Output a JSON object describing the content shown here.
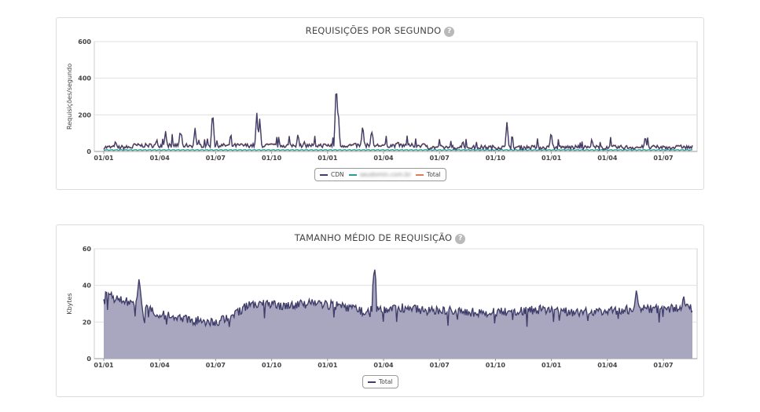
{
  "chart_data": [
    {
      "type": "line",
      "title": "REQUISIÇÕES POR SEGUNDO",
      "help_icon": "?",
      "ylabel": "Requisições/segundo",
      "xlabel": "",
      "ylim": [
        0,
        600
      ],
      "yticks": [
        "0",
        "200",
        "400",
        "600"
      ],
      "xticks": [
        "01/01",
        "01/04",
        "01/07",
        "01/10",
        "01/01",
        "01/04",
        "01/07",
        "01/10",
        "01/01",
        "01/04",
        "01/07"
      ],
      "grid": true,
      "legend_position": "bottom-center",
      "series": [
        {
          "name": "CDN",
          "color": "#3f3d6a"
        },
        {
          "name": "seudomin.com.br",
          "color": "#2a9d8f"
        },
        {
          "name": "Total",
          "color": "#e07b5a"
        }
      ],
      "baseline": 22,
      "spikes": [
        [
          0.02,
          60
        ],
        [
          0.09,
          70
        ],
        [
          0.105,
          110
        ],
        [
          0.13,
          120
        ],
        [
          0.155,
          130
        ],
        [
          0.185,
          225
        ],
        [
          0.215,
          60
        ],
        [
          0.26,
          215
        ],
        [
          0.265,
          180
        ],
        [
          0.33,
          100
        ],
        [
          0.395,
          390
        ],
        [
          0.398,
          250
        ],
        [
          0.44,
          150
        ],
        [
          0.455,
          120
        ],
        [
          0.5,
          60
        ],
        [
          0.61,
          60
        ],
        [
          0.685,
          160
        ],
        [
          0.76,
          110
        ],
        [
          0.83,
          55
        ],
        [
          0.92,
          85
        ],
        [
          0.98,
          40
        ]
      ]
    },
    {
      "type": "area",
      "title": "TAMANHO MÉDIO DE REQUISIÇÃO",
      "help_icon": "?",
      "ylabel": "Kbytes",
      "xlabel": "",
      "ylim": [
        0,
        60
      ],
      "yticks": [
        "0",
        "20",
        "40",
        "60"
      ],
      "xticks": [
        "01/01",
        "01/04",
        "01/07",
        "01/10",
        "01/01",
        "01/04",
        "01/07",
        "01/10",
        "01/01",
        "01/04",
        "01/07"
      ],
      "grid": true,
      "legend_position": "bottom-center",
      "series": [
        {
          "name": "Total",
          "color": "#3f3d6a",
          "fill": "#a9a7bf"
        }
      ],
      "trend": [
        [
          0.0,
          35
        ],
        [
          0.04,
          31
        ],
        [
          0.06,
          28
        ],
        [
          0.1,
          24
        ],
        [
          0.15,
          21
        ],
        [
          0.19,
          20
        ],
        [
          0.22,
          24
        ],
        [
          0.25,
          30
        ],
        [
          0.3,
          29
        ],
        [
          0.35,
          30
        ],
        [
          0.4,
          29
        ],
        [
          0.44,
          26
        ],
        [
          0.48,
          27
        ],
        [
          0.5,
          28
        ],
        [
          0.55,
          26
        ],
        [
          0.6,
          26
        ],
        [
          0.65,
          25
        ],
        [
          0.7,
          26
        ],
        [
          0.75,
          27
        ],
        [
          0.8,
          25
        ],
        [
          0.85,
          26
        ],
        [
          0.9,
          27
        ],
        [
          0.95,
          27
        ],
        [
          1.0,
          28
        ]
      ],
      "spikes": [
        [
          0.06,
          44
        ],
        [
          0.46,
          50
        ],
        [
          0.905,
          38
        ],
        [
          0.985,
          35
        ]
      ]
    }
  ]
}
